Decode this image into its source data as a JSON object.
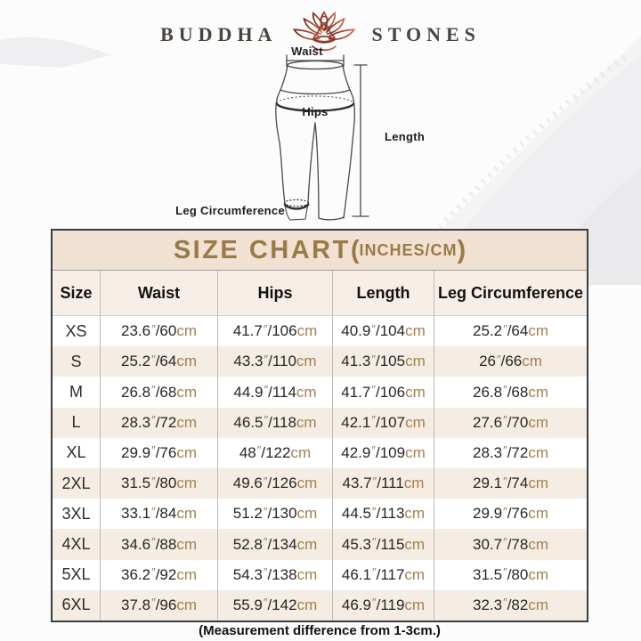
{
  "brand": {
    "name_left": "BUDDHA",
    "name_right": "STONES"
  },
  "diagram": {
    "waist_label": "Waist",
    "hips_label": "Hips",
    "length_label": "Length",
    "leg_label": "Leg Circumference"
  },
  "size_chart": {
    "title": "SIZE CHART",
    "units_open": "(",
    "units": "INCHES/CM",
    "units_close": ")",
    "columns": [
      "Size",
      "Waist",
      "Hips",
      "Length",
      "Leg Circumference"
    ],
    "inch_mark": "″",
    "separator": "/",
    "cm_label": "cm",
    "rows": [
      {
        "size": "XS",
        "waist": [
          "23.6",
          "60"
        ],
        "hips": [
          "41.7",
          "106"
        ],
        "length": [
          "40.9",
          "104"
        ],
        "leg": [
          "25.2",
          "64"
        ]
      },
      {
        "size": "S",
        "waist": [
          "25.2",
          "64"
        ],
        "hips": [
          "43.3",
          "110"
        ],
        "length": [
          "41.3",
          "105"
        ],
        "leg": [
          "26",
          "66"
        ]
      },
      {
        "size": "M",
        "waist": [
          "26.8",
          "68"
        ],
        "hips": [
          "44.9",
          "114"
        ],
        "length": [
          "41.7",
          "106"
        ],
        "leg": [
          "26.8",
          "68"
        ]
      },
      {
        "size": "L",
        "waist": [
          "28.3",
          "72"
        ],
        "hips": [
          "46.5",
          "118"
        ],
        "length": [
          "42.1",
          "107"
        ],
        "leg": [
          "27.6",
          "70"
        ]
      },
      {
        "size": "XL",
        "waist": [
          "29.9",
          "76"
        ],
        "hips": [
          "48",
          "122"
        ],
        "length": [
          "42.9",
          "109"
        ],
        "leg": [
          "28.3",
          "72"
        ]
      },
      {
        "size": "2XL",
        "waist": [
          "31.5",
          "80"
        ],
        "hips": [
          "49.6",
          "126"
        ],
        "length": [
          "43.7",
          "111"
        ],
        "leg": [
          "29.1",
          "74"
        ]
      },
      {
        "size": "3XL",
        "waist": [
          "33.1",
          "84"
        ],
        "hips": [
          "51.2",
          "130"
        ],
        "length": [
          "44.5",
          "113"
        ],
        "leg": [
          "29.9",
          "76"
        ]
      },
      {
        "size": "4XL",
        "waist": [
          "34.6",
          "88"
        ],
        "hips": [
          "52.8",
          "134"
        ],
        "length": [
          "45.3",
          "115"
        ],
        "leg": [
          "30.7",
          "78"
        ]
      },
      {
        "size": "5XL",
        "waist": [
          "36.2",
          "92"
        ],
        "hips": [
          "54.3",
          "138"
        ],
        "length": [
          "46.1",
          "117"
        ],
        "leg": [
          "31.5",
          "80"
        ]
      },
      {
        "size": "6XL",
        "waist": [
          "37.8",
          "96"
        ],
        "hips": [
          "55.9",
          "142"
        ],
        "length": [
          "46.9",
          "119"
        ],
        "leg": [
          "32.3",
          "82"
        ]
      }
    ]
  },
  "footer_note": "(Measurement difference from 1-3cm.)",
  "colors": {
    "accent_brown": "#9a7a46",
    "cm_brown": "#a5804e",
    "title_bar_bg": "#f0e1d3",
    "stripe_bg": "#f5ece3",
    "lotus_dark": "#6e2a1e",
    "lotus_light": "#c96a4e"
  }
}
